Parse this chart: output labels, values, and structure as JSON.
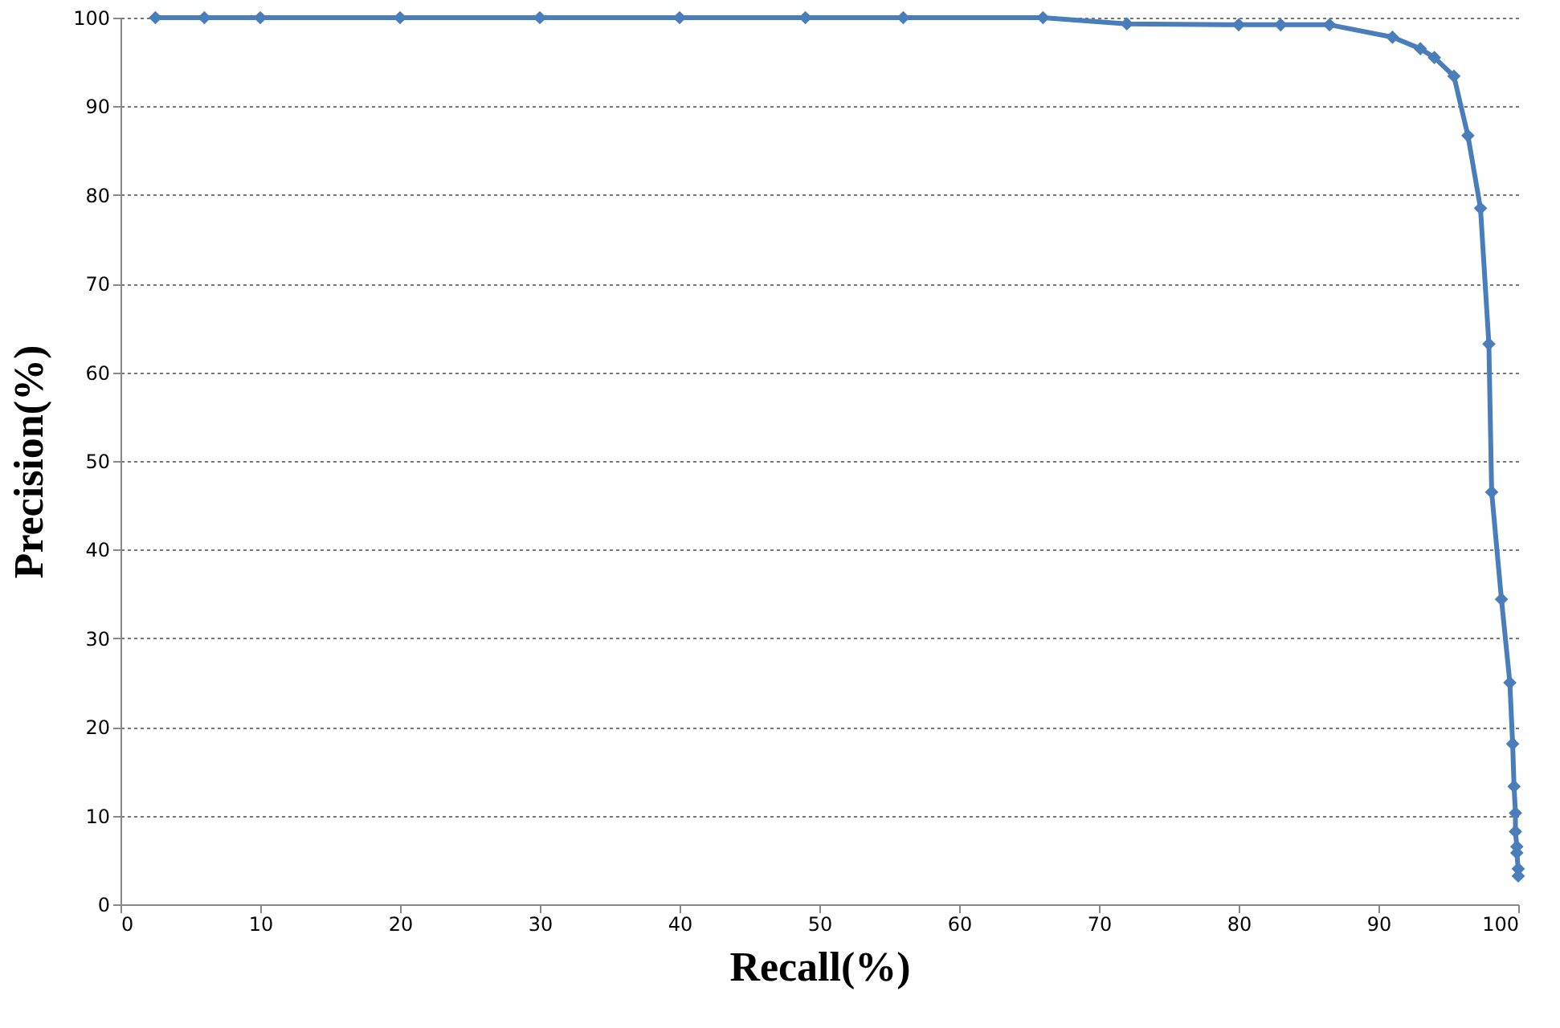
{
  "chart_data": {
    "type": "line",
    "xlabel": "Recall(%)",
    "ylabel": "Precision(%)",
    "x": [
      2.5,
      6,
      10,
      20,
      30,
      40,
      49,
      56,
      66,
      72,
      80,
      83,
      86.5,
      91,
      93,
      94,
      95.4,
      96.4,
      97.3,
      97.9,
      98.1,
      98.8,
      99.4,
      99.6,
      99.7,
      99.8,
      99.8,
      99.9,
      99.9,
      100,
      100
    ],
    "series": [
      {
        "color": "#4a7ebb",
        "values": [
          100,
          100,
          100,
          100,
          100,
          100,
          100,
          100,
          100,
          99.3,
          99.2,
          99.2,
          99.2,
          97.8,
          96.5,
          95.5,
          93.4,
          86.7,
          78.5,
          63.2,
          46.5,
          34.4,
          25,
          18.1,
          13.3,
          10.3,
          8.2,
          6.5,
          5.8,
          4,
          3.2
        ]
      }
    ],
    "xlim": [
      0,
      100
    ],
    "xticks": [
      0,
      10,
      20,
      30,
      40,
      50,
      60,
      70,
      80,
      90,
      100
    ],
    "ylim": [
      0,
      100
    ],
    "yticks": [
      0,
      10,
      20,
      30,
      40,
      50,
      60,
      70,
      80,
      90,
      100
    ],
    "grid": "y",
    "marker": "diamond",
    "line_style": "solid"
  }
}
